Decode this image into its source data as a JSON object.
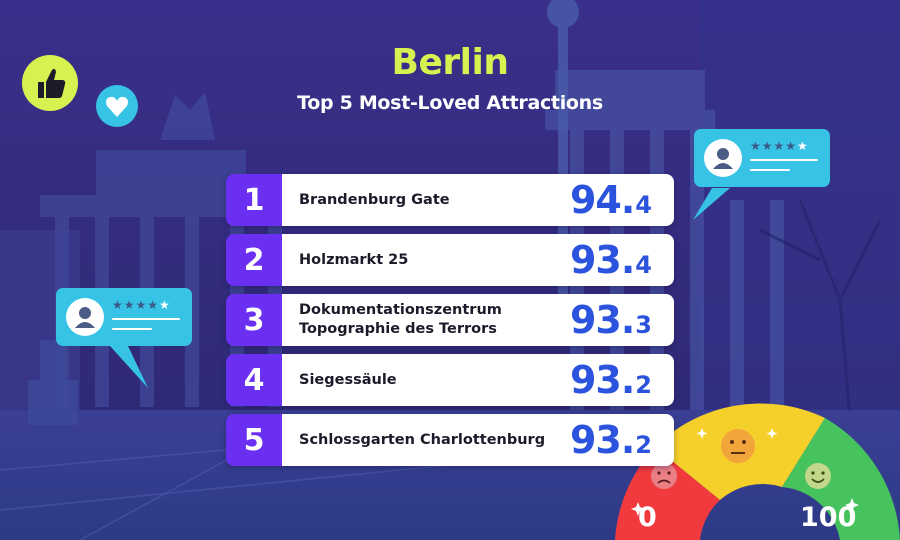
{
  "header": {
    "title": "Berlin",
    "subtitle": "Top 5 Most-Loved Attractions"
  },
  "rankings": [
    {
      "rank": "1",
      "name": "Brandenburg Gate",
      "score_int": "94",
      "score_dec": "4"
    },
    {
      "rank": "2",
      "name": "Holzmarkt 25",
      "score_int": "93",
      "score_dec": "4"
    },
    {
      "rank": "3",
      "name": "Dokumentationszentrum\nTopographie des Terrors",
      "score_int": "93",
      "score_dec": "3"
    },
    {
      "rank": "4",
      "name": "Siegessäule",
      "score_int": "93",
      "score_dec": "2"
    },
    {
      "rank": "5",
      "name": "Schlossgarten Charlottenburg",
      "score_int": "93",
      "score_dec": "2"
    }
  ],
  "gauge": {
    "min_label": "0",
    "max_label": "100",
    "segment_colors": [
      "#f03a3e",
      "#f5cf2a",
      "#47c35e"
    ]
  },
  "review_bubbles": {
    "stars": "★★★★★",
    "lit_star": "★",
    "dim_stars": "★★★★"
  },
  "colors": {
    "background": "#2e2a7a",
    "title": "#d7f250",
    "rank_badge": "#6a2ff0",
    "score": "#2c53de",
    "bubble": "#36c3e6",
    "thumbs_badge": "#d7f250"
  },
  "icons": [
    "thumbs-up-icon",
    "heart-icon",
    "user-icon",
    "star-icon",
    "sad-face-icon",
    "neutral-face-icon",
    "happy-face-icon"
  ]
}
